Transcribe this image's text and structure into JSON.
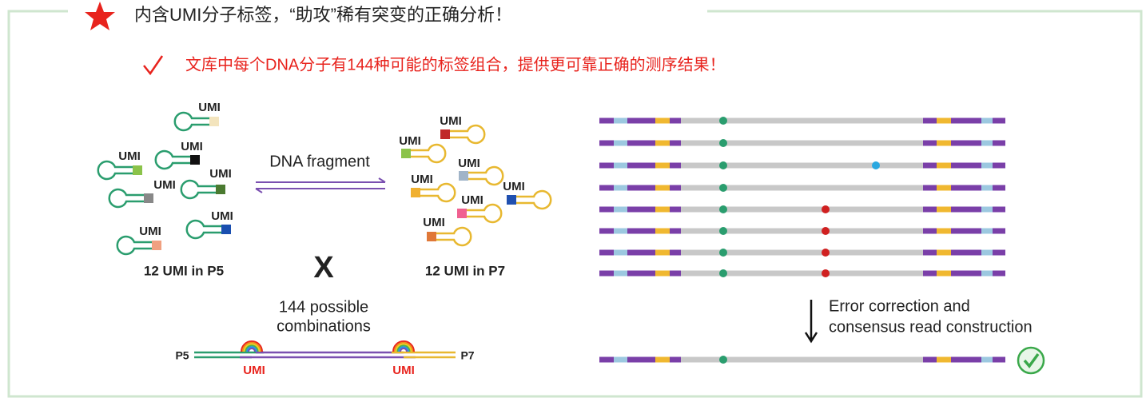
{
  "header": {
    "title": "内含UMI分子标签，“助攻”稀有突变的正确分析！",
    "subtitle": "文库中每个DNA分子有144种可能的标签组合，提供更可靠正确的测序结果！"
  },
  "left_panel": {
    "p5_umi_labels": [
      "UMI",
      "UMI",
      "UMI",
      "UMI",
      "UMI",
      "UMI",
      "UMI"
    ],
    "arrow_label": "DNA fragment",
    "p7_umi_labels": [
      "UMI",
      "UMI",
      "UMI",
      "UMI",
      "UMI",
      "UMI",
      "UMI"
    ],
    "p5_caption": "12 UMI in P5",
    "operator": "X",
    "p7_caption": "12 UMI in P7",
    "combinations_lines": [
      "144 possible",
      "combinations"
    ],
    "construct": {
      "left_end": "P5",
      "right_end": "P7",
      "umi_labels": [
        "UMI",
        "UMI"
      ]
    }
  },
  "right_panel": {
    "caption_lines": [
      "Error correction and",
      "consensus read construction"
    ]
  }
}
